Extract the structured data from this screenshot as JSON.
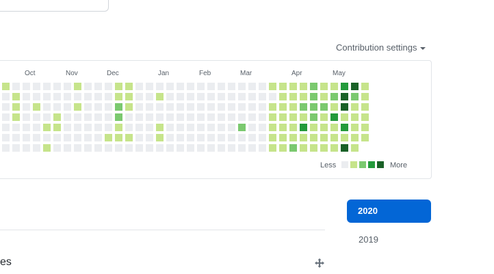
{
  "settings": {
    "label": "Contribution settings"
  },
  "calendar": {
    "months": [
      {
        "label": "Oct",
        "week": 2
      },
      {
        "label": "Nov",
        "week": 6
      },
      {
        "label": "Dec",
        "week": 10
      },
      {
        "label": "Jan",
        "week": 15
      },
      {
        "label": "Feb",
        "week": 19
      },
      {
        "label": "Mar",
        "week": 23
      },
      {
        "label": "Apr",
        "week": 28
      },
      {
        "label": "May",
        "week": 32
      }
    ],
    "weeks": [
      [
        1,
        0,
        0,
        0,
        0,
        0,
        0
      ],
      [
        0,
        1,
        1,
        1,
        0,
        0,
        0
      ],
      [
        0,
        0,
        0,
        0,
        0,
        0,
        0
      ],
      [
        0,
        0,
        1,
        0,
        0,
        0,
        0
      ],
      [
        0,
        0,
        0,
        0,
        1,
        0,
        1
      ],
      [
        0,
        0,
        0,
        1,
        1,
        0,
        0
      ],
      [
        0,
        0,
        0,
        0,
        0,
        0,
        0
      ],
      [
        1,
        0,
        1,
        0,
        0,
        0,
        0
      ],
      [
        0,
        0,
        0,
        0,
        0,
        0,
        0
      ],
      [
        0,
        0,
        0,
        0,
        0,
        0,
        0
      ],
      [
        0,
        0,
        0,
        0,
        0,
        1,
        0
      ],
      [
        1,
        1,
        2,
        2,
        1,
        1,
        0
      ],
      [
        1,
        1,
        1,
        0,
        0,
        1,
        0
      ],
      [
        0,
        0,
        0,
        0,
        0,
        0,
        0
      ],
      [
        0,
        0,
        0,
        0,
        0,
        0,
        0
      ],
      [
        0,
        1,
        0,
        0,
        1,
        1,
        0
      ],
      [
        0,
        0,
        0,
        0,
        0,
        0,
        0
      ],
      [
        0,
        0,
        0,
        0,
        0,
        0,
        0
      ],
      [
        0,
        0,
        0,
        0,
        0,
        0,
        0
      ],
      [
        0,
        0,
        0,
        0,
        0,
        0,
        0
      ],
      [
        0,
        0,
        0,
        0,
        0,
        0,
        0
      ],
      [
        0,
        0,
        0,
        0,
        0,
        0,
        0
      ],
      [
        0,
        0,
        0,
        0,
        0,
        0,
        0
      ],
      [
        0,
        0,
        0,
        0,
        2,
        0,
        0
      ],
      [
        0,
        0,
        0,
        0,
        0,
        0,
        0
      ],
      [
        0,
        0,
        0,
        0,
        0,
        0,
        0
      ],
      [
        1,
        0,
        1,
        1,
        1,
        1,
        1
      ],
      [
        1,
        1,
        1,
        1,
        1,
        1,
        1
      ],
      [
        1,
        1,
        1,
        1,
        1,
        1,
        2
      ],
      [
        1,
        1,
        2,
        1,
        3,
        1,
        1
      ],
      [
        2,
        2,
        2,
        2,
        1,
        1,
        1
      ],
      [
        1,
        1,
        2,
        1,
        1,
        1,
        1
      ],
      [
        1,
        2,
        1,
        3,
        1,
        1,
        1
      ],
      [
        3,
        4,
        4,
        1,
        3,
        1,
        4
      ],
      [
        4,
        2,
        1,
        1,
        1,
        1,
        1
      ],
      [
        1,
        1,
        1,
        1,
        1,
        1,
        null
      ]
    ],
    "colors": [
      "#ebedf0",
      "#c6e48b",
      "#7bc96f",
      "#239a3b",
      "#196127"
    ],
    "legend": {
      "less": "Less",
      "more": "More"
    }
  },
  "years": {
    "active": "2020",
    "other": "2019"
  },
  "bottom": {
    "text": "es"
  },
  "icons": {
    "move": "move-icon"
  }
}
